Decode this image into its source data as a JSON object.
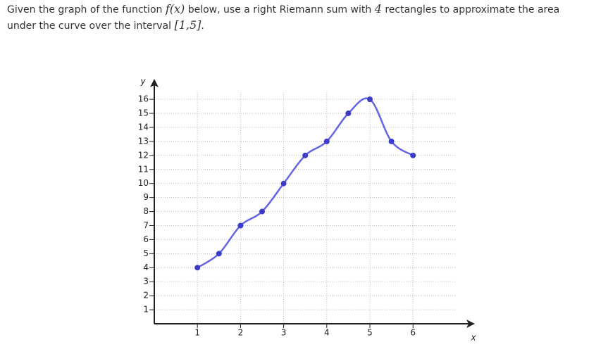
{
  "question": {
    "parts": [
      "Given the graph of the function ",
      "f(x)",
      " below, use a right Riemann sum with ",
      "4",
      " rectangles to approximate the area under the curve over the interval ",
      "[1,5]",
      "."
    ]
  },
  "chart_data": {
    "type": "line",
    "x_label": "x",
    "y_label": "y",
    "x": [
      1,
      1.5,
      2,
      2.5,
      3,
      3.5,
      4,
      4.5,
      5,
      5.5,
      6
    ],
    "series": [
      {
        "color": "#6464e6",
        "values": [
          4,
          5,
          7,
          8,
          10,
          12,
          13,
          15,
          16,
          13,
          12
        ]
      }
    ],
    "xlim": [
      0,
      7
    ],
    "ylim": [
      0,
      16.5
    ],
    "xticks": [
      1,
      2,
      3,
      4,
      5,
      6
    ],
    "yticks": [
      1,
      2,
      3,
      4,
      5,
      6,
      7,
      8,
      9,
      10,
      11,
      12,
      13,
      14,
      15,
      16
    ],
    "grid": true,
    "smooth": true,
    "marker_color": "#3c3cc8"
  }
}
